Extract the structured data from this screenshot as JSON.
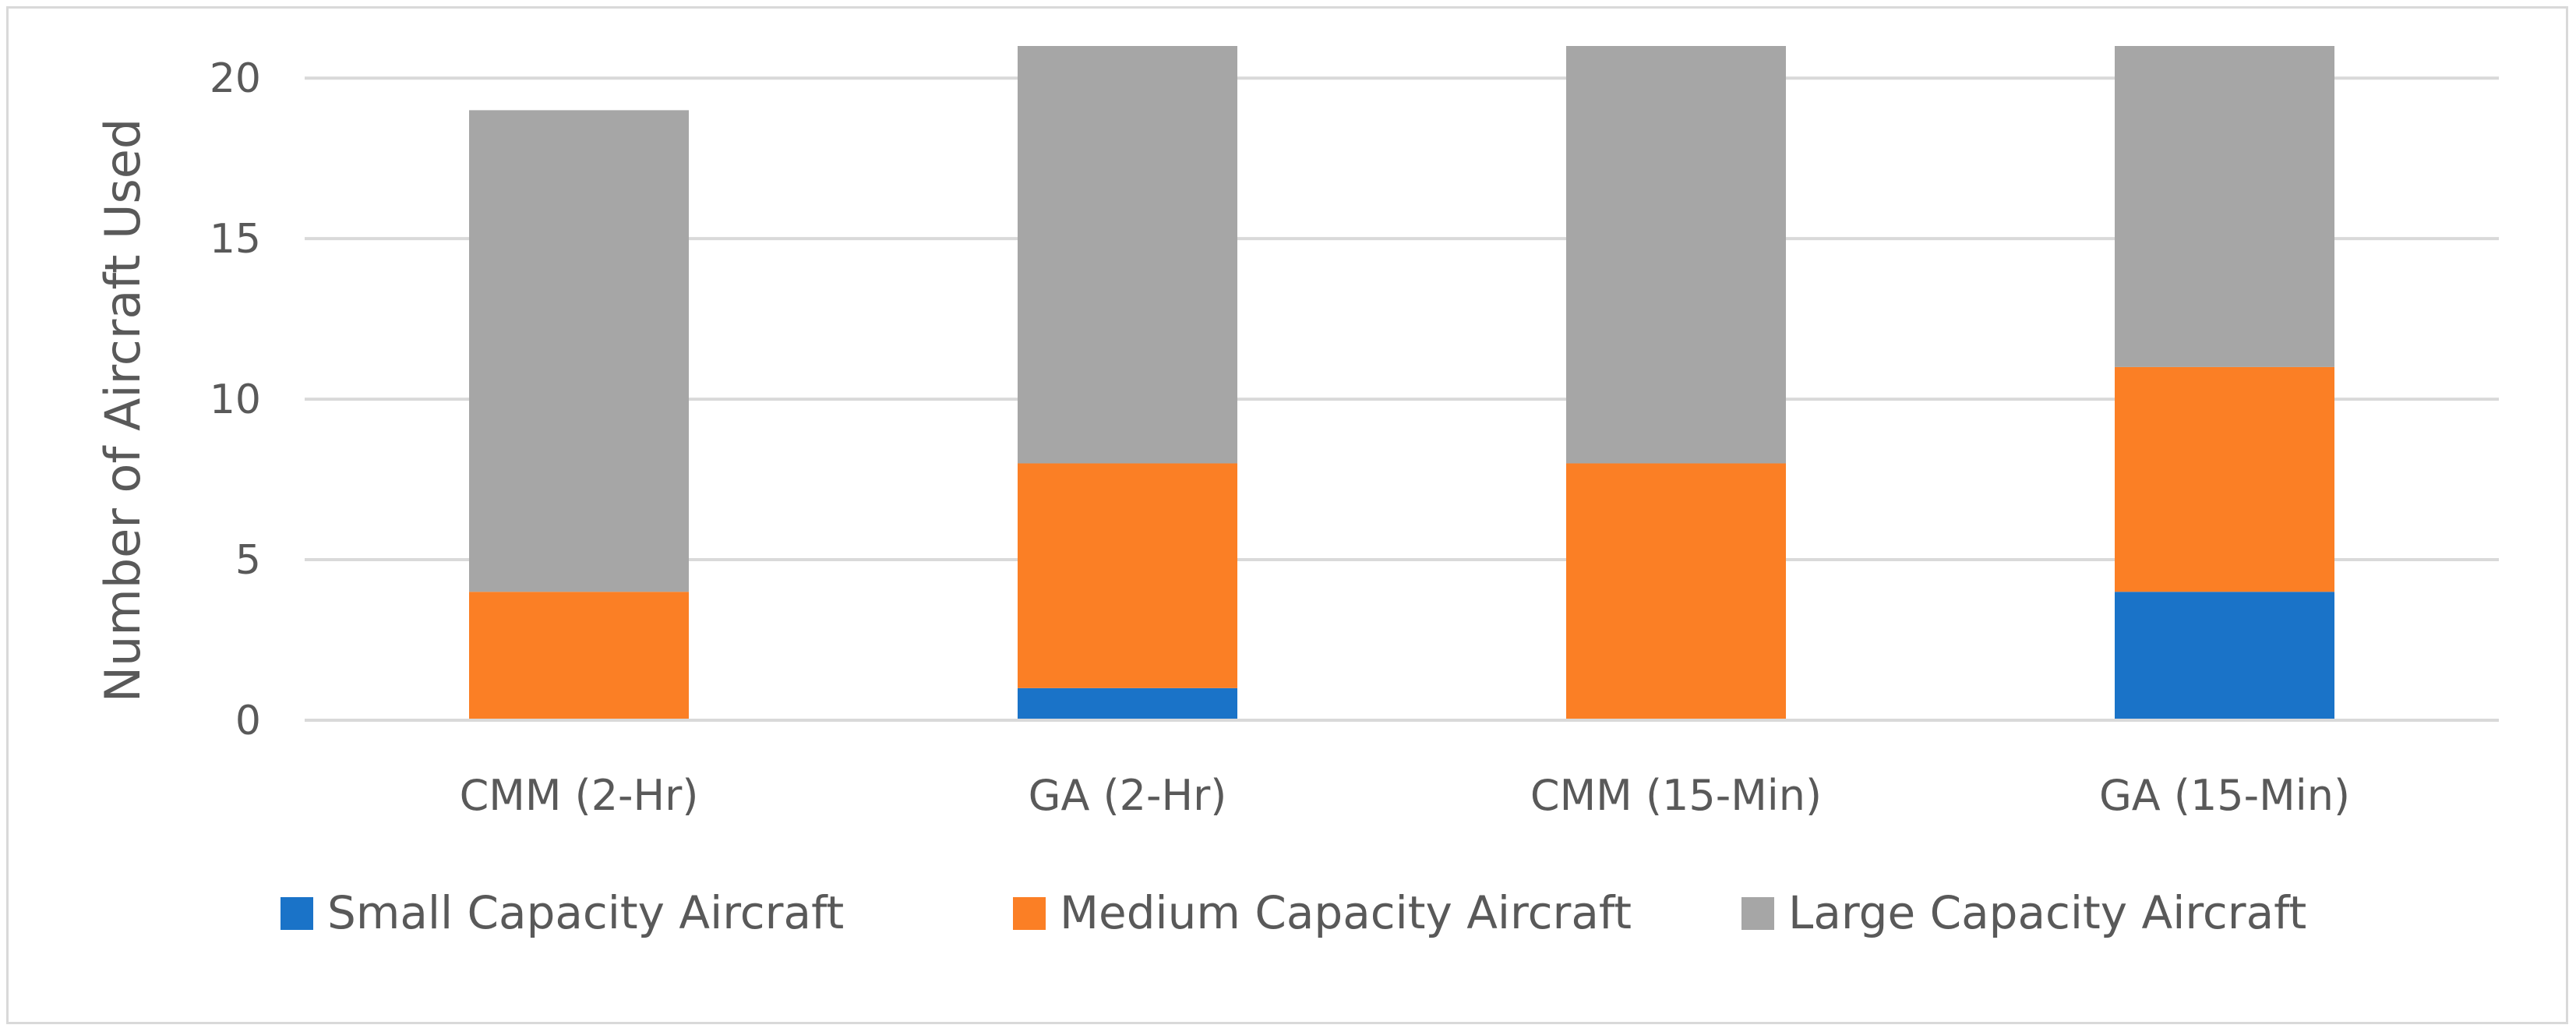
{
  "chart_data": {
    "type": "bar",
    "stacked": true,
    "title": "",
    "xlabel": "",
    "ylabel": "Number of Aircraft Used",
    "ylim": [
      0,
      21
    ],
    "yticks": [
      0,
      5,
      10,
      15,
      20
    ],
    "grid": true,
    "legend_position": "bottom",
    "categories": [
      "CMM (2-Hr)",
      "GA (2-Hr)",
      "CMM (15-Min)",
      "GA (15-Min)"
    ],
    "series": [
      {
        "name": "Small Capacity Aircraft",
        "color": "#1a73c8",
        "values": [
          0,
          1,
          0,
          4
        ]
      },
      {
        "name": "Medium Capacity Aircraft",
        "color": "#fb7f25",
        "values": [
          4,
          7,
          8,
          7
        ]
      },
      {
        "name": "Large Capacity Aircraft",
        "color": "#a6a6a6",
        "values": [
          15,
          13,
          13,
          10
        ]
      }
    ]
  }
}
